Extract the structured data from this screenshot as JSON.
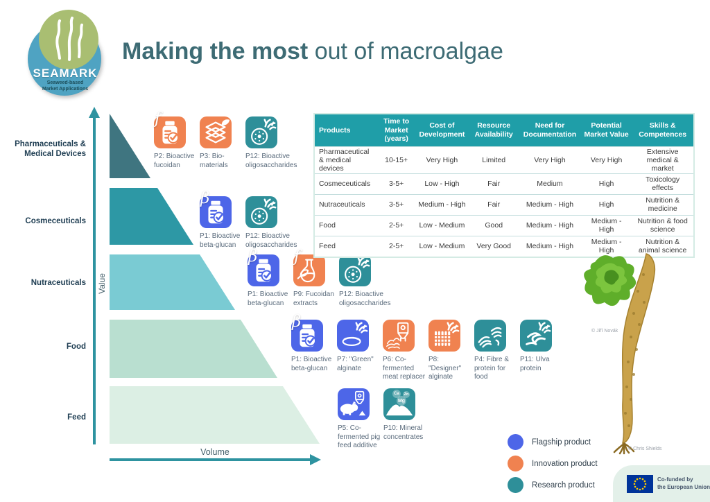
{
  "logo": {
    "name": "SEAMARK",
    "sub1": "Seaweed-based",
    "sub2": "Market Applications"
  },
  "title": {
    "bold": "Making the most",
    "regular": " out of macroalgae"
  },
  "colors": {
    "flagship": "#4d66e8",
    "innovation": "#f08250",
    "research": "#2e8f99",
    "table_header": "#1f9ea8",
    "axis": "#2e93a0"
  },
  "pyramid": {
    "value_axis_label": "Value",
    "volume_axis_label": "Volume",
    "levels": [
      {
        "label": "Pharmaceuticals &\nMedical Devices",
        "color": "#3f7580"
      },
      {
        "label": "Cosmeceuticals",
        "color": "#2d98a5"
      },
      {
        "label": "Nutraceuticals",
        "color": "#7acbd3"
      },
      {
        "label": "Food",
        "color": "#b9dfd0"
      },
      {
        "label": "Feed",
        "color": "#dcefe4"
      }
    ]
  },
  "product_rows": [
    {
      "key": "pharmaceuticals",
      "items": [
        {
          "label": "P2: Bioactive fucoidan",
          "type": "innovation",
          "icon": "pill-bottle-icon",
          "corner": "f"
        },
        {
          "label": "P3: Bio-materials",
          "type": "innovation",
          "icon": "layers-leaf-icon"
        },
        {
          "label": "P12: Bioactive oligosaccharides",
          "type": "research",
          "icon": "petri-coral-icon"
        }
      ]
    },
    {
      "key": "cosmeceuticals",
      "items": [
        {
          "label": "P1: Bioactive beta-glucan",
          "type": "flagship",
          "icon": "pill-bottle-icon",
          "corner": "β"
        },
        {
          "label": "P12: Bioactive oligosaccharides",
          "type": "research",
          "icon": "petri-coral-icon"
        }
      ]
    },
    {
      "key": "nutraceuticals",
      "items": [
        {
          "label": "P1: Bioactive beta-glucan",
          "type": "flagship",
          "icon": "pill-bottle-icon",
          "corner": "β"
        },
        {
          "label": "P9: Fucoidan extracts",
          "type": "innovation",
          "icon": "flask-leaf-icon",
          "corner": "f"
        },
        {
          "label": "P12: Bioactive oligosaccharides",
          "type": "research",
          "icon": "petri-coral-icon"
        }
      ]
    },
    {
      "key": "food",
      "items": [
        {
          "label": "P1: Bioactive beta-glucan",
          "type": "flagship",
          "icon": "pill-bottle-icon",
          "corner": "β"
        },
        {
          "label": "P7: \"Green\" alginate",
          "type": "flagship",
          "icon": "discs-coral-icon"
        },
        {
          "label": "P6: Co-fermented meat replacer",
          "type": "innovation",
          "icon": "fermenter-icon"
        },
        {
          "label": "P8: \"Designer\" alginate",
          "type": "innovation",
          "icon": "weave-coral-icon"
        },
        {
          "label": "P4: Fibre & protein for food",
          "type": "research",
          "icon": "fibres-icon"
        },
        {
          "label": "P11: Ulva protein",
          "type": "research",
          "icon": "ulva-coral-icon"
        }
      ]
    },
    {
      "key": "feed",
      "items": [
        {
          "label": "P5: Co-fermented pig feed additive",
          "type": "flagship",
          "icon": "pig-fermenter-icon"
        },
        {
          "label": "P10: Mineral concentrates",
          "type": "research",
          "icon": "minerals-icon",
          "elements": [
            "Ca",
            "Zn",
            "Mg"
          ]
        }
      ]
    }
  ],
  "table": {
    "headers": [
      "Products",
      "Time to Market (years)",
      "Cost of Development",
      "Resource Availability",
      "Need for Documentation",
      "Potential Market Value",
      "Skills & Competences"
    ],
    "rows": [
      [
        "Pharmaceutical & medical devices",
        "10-15+",
        "Very High",
        "Limited",
        "Very High",
        "Very High",
        "Extensive medical & market"
      ],
      [
        "Cosmeceuticals",
        "3-5+",
        "Low - High",
        "Fair",
        "Medium",
        "High",
        "Toxicology effects"
      ],
      [
        "Nutraceuticals",
        "3-5+",
        "Medium - High",
        "Fair",
        "Medium - High",
        "High",
        "Nutrition & medicine"
      ],
      [
        "Food",
        "2-5+",
        "Low - Medium",
        "Good",
        "Medium - High",
        "Medium - High",
        "Nutrition & food science"
      ],
      [
        "Feed",
        "2-5+",
        "Low - Medium",
        "Very Good",
        "Medium - High",
        "Medium - High",
        "Nutrition & animal science"
      ]
    ]
  },
  "legend": [
    {
      "label": "Flagship product",
      "type": "flagship"
    },
    {
      "label": "Innovation product",
      "type": "innovation"
    },
    {
      "label": "Research product",
      "type": "research"
    }
  ],
  "credits": {
    "ulva": "© Jiří Novák",
    "kelp": "© Chris Shields"
  },
  "eu": {
    "line1": "Co-funded by",
    "line2": "the European Union"
  }
}
